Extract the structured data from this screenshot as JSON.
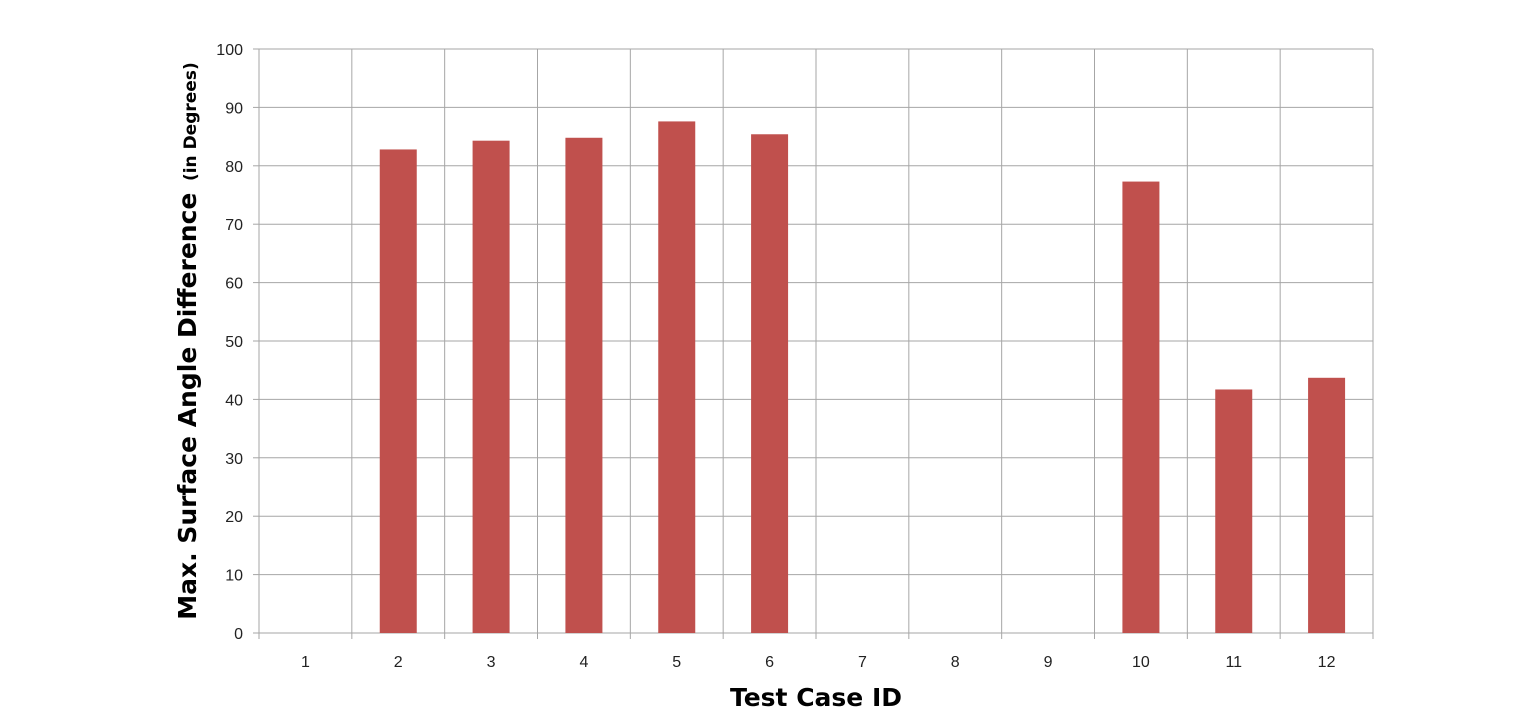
{
  "chart_data": {
    "type": "bar",
    "xlabel": "Test Case ID",
    "ylabel_main": "Max. Surface Angle Difference",
    "ylabel_sub": "(in Degrees)",
    "categories": [
      "1",
      "2",
      "3",
      "4",
      "5",
      "6",
      "7",
      "8",
      "9",
      "10",
      "11",
      "12"
    ],
    "values": [
      0,
      82.8,
      84.3,
      84.8,
      87.6,
      85.4,
      0,
      0,
      0,
      77.3,
      41.7,
      43.7
    ],
    "ylim": [
      0,
      100
    ],
    "yticks": [
      "0",
      "10",
      "20",
      "30",
      "40",
      "50",
      "60",
      "70",
      "80",
      "90",
      "100"
    ],
    "grid": true,
    "bar_color": "#c0504d",
    "grid_color": "#a6a6a6"
  }
}
